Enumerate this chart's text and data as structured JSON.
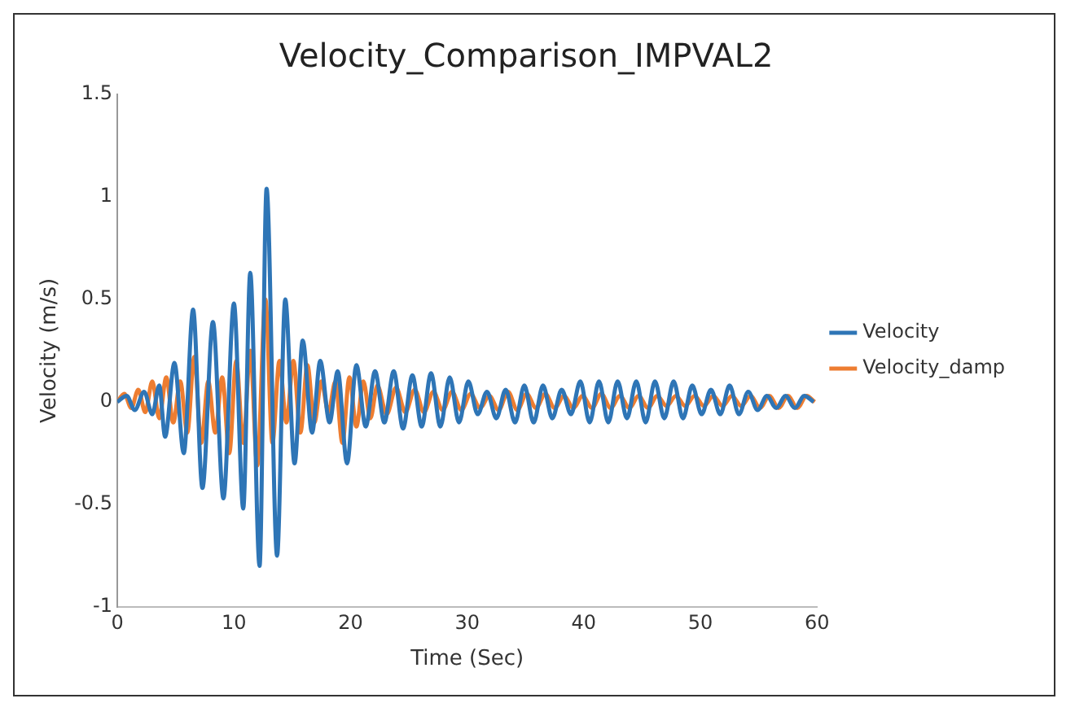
{
  "chart_data": {
    "type": "line",
    "title": "Velocity_Comparison_IMPVAL2",
    "xlabel": "Time (Sec)",
    "ylabel": "Velocity (m/s)",
    "xlim": [
      0,
      60
    ],
    "xticks": [
      0,
      10,
      20,
      30,
      40,
      50,
      60
    ],
    "ylim": [
      -1,
      1.5
    ],
    "yticks": [
      -1,
      -0.5,
      0,
      0.5,
      1,
      1.5
    ],
    "grid": false,
    "legend": "right",
    "marker": "none",
    "line_style": "solid",
    "series": [
      {
        "name": "Velocity",
        "color": "#2e75b6",
        "x": [
          0,
          0.8,
          1.5,
          2.3,
          3,
          3.6,
          4.1,
          4.9,
          5.7,
          6.5,
          7.3,
          8.2,
          9.1,
          10,
          10.8,
          11.4,
          12.2,
          12.8,
          13.7,
          14.4,
          15.2,
          15.9,
          16.7,
          17.4,
          18.2,
          18.9,
          19.7,
          20.5,
          21.3,
          22.1,
          22.9,
          23.7,
          24.5,
          25.3,
          26.1,
          26.9,
          27.7,
          28.5,
          29.3,
          30.1,
          30.9,
          31.7,
          32.5,
          33.3,
          34.1,
          34.9,
          35.7,
          36.5,
          37.3,
          38.1,
          38.9,
          39.7,
          40.5,
          41.3,
          42.1,
          42.9,
          43.7,
          44.5,
          45.3,
          46.1,
          46.9,
          47.7,
          48.5,
          49.3,
          50.1,
          50.9,
          51.7,
          52.5,
          53.3,
          54.1,
          54.9,
          55.7,
          56.5,
          57.3,
          58.1,
          58.9,
          59.7
        ],
        "values": [
          0,
          0.03,
          -0.04,
          0.05,
          -0.06,
          0.08,
          -0.17,
          0.19,
          -0.25,
          0.45,
          -0.42,
          0.39,
          -0.47,
          0.48,
          -0.52,
          0.63,
          -0.8,
          1.04,
          -0.75,
          0.5,
          -0.3,
          0.3,
          -0.15,
          0.2,
          -0.1,
          0.15,
          -0.3,
          0.18,
          -0.12,
          0.15,
          -0.1,
          0.15,
          -0.13,
          0.13,
          -0.12,
          0.14,
          -0.12,
          0.12,
          -0.1,
          0.1,
          -0.06,
          0.05,
          -0.08,
          0.06,
          -0.1,
          0.08,
          -0.1,
          0.08,
          -0.08,
          0.06,
          -0.06,
          0.1,
          -0.1,
          0.1,
          -0.1,
          0.1,
          -0.08,
          0.1,
          -0.1,
          0.1,
          -0.08,
          0.1,
          -0.08,
          0.08,
          -0.06,
          0.06,
          -0.06,
          0.08,
          -0.06,
          0.05,
          -0.04,
          0.03,
          -0.03,
          0.03,
          -0.03,
          0.03,
          0
        ]
      },
      {
        "name": "Velocity_damp",
        "color": "#ed7d31",
        "x": [
          0,
          0.6,
          1.2,
          1.8,
          2.4,
          3,
          3.6,
          4.2,
          4.8,
          5.4,
          6,
          6.6,
          7.2,
          7.8,
          8.4,
          9,
          9.6,
          10.2,
          10.8,
          11.4,
          12,
          12.7,
          13.3,
          13.9,
          14.5,
          15.1,
          15.7,
          16.3,
          16.9,
          17.5,
          18.1,
          18.7,
          19.3,
          19.9,
          20.5,
          21.1,
          21.7,
          22.3,
          23.1,
          23.9,
          24.7,
          25.5,
          26.3,
          27.1,
          27.9,
          28.7,
          29.5,
          30.3,
          31.1,
          31.9,
          32.7,
          33.5,
          34.3,
          35.1,
          35.9,
          36.7,
          37.5,
          38.3,
          39.1,
          39.9,
          40.7,
          41.5,
          42.3,
          43.1,
          43.9,
          44.7,
          45.5,
          46.3,
          47.1,
          47.9,
          48.7,
          49.5,
          50.3,
          51.1,
          51.9,
          52.7,
          53.5,
          54.3,
          55.1,
          55.9,
          56.7,
          57.5,
          58.3,
          59.1,
          59.8
        ],
        "values": [
          0,
          0.04,
          -0.03,
          0.06,
          -0.05,
          0.1,
          -0.08,
          0.12,
          -0.1,
          0.1,
          -0.15,
          0.22,
          -0.2,
          0.1,
          -0.15,
          0.12,
          -0.25,
          0.2,
          -0.2,
          0.25,
          -0.31,
          0.5,
          -0.2,
          0.2,
          -0.1,
          0.2,
          -0.15,
          0.18,
          -0.1,
          0.1,
          -0.05,
          0.1,
          -0.2,
          0.12,
          -0.12,
          0.1,
          -0.08,
          0.08,
          -0.06,
          0.07,
          -0.05,
          0.06,
          -0.05,
          0.05,
          -0.04,
          0.05,
          -0.04,
          0.04,
          -0.03,
          0.03,
          -0.04,
          0.05,
          -0.04,
          0.04,
          -0.03,
          0.04,
          -0.03,
          0.03,
          -0.03,
          0.03,
          -0.03,
          0.04,
          -0.03,
          0.03,
          -0.03,
          0.03,
          -0.03,
          0.03,
          -0.02,
          0.03,
          -0.02,
          0.03,
          -0.02,
          0.03,
          -0.02,
          0.03,
          -0.02,
          0.03,
          -0.03,
          0.03,
          -0.03,
          0.03,
          -0.03,
          0.03,
          0
        ]
      }
    ]
  }
}
